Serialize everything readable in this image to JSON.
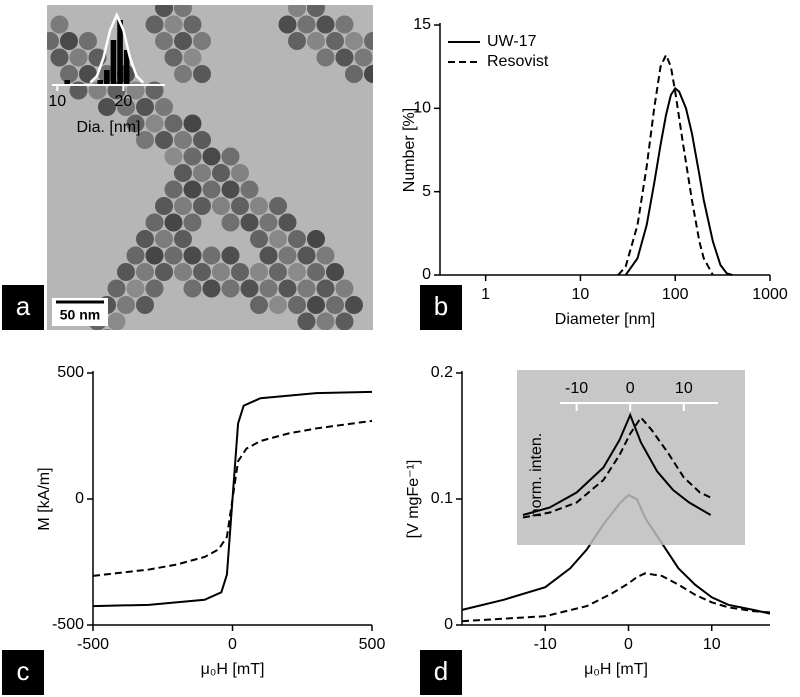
{
  "chart_data": [
    {
      "type": "histogram",
      "panel_label": "a",
      "scale_bar": "50 nm",
      "xlabel": "Dia. [nm]",
      "bins": [
        11,
        12,
        13,
        14,
        15,
        16,
        17,
        18,
        19,
        20,
        21
      ],
      "counts": [
        1,
        0,
        0,
        0,
        0,
        1,
        3,
        9,
        13,
        7,
        1
      ],
      "color": "#000000",
      "fit": {
        "color": "#ffffff",
        "x": [
          15,
          16,
          17,
          18,
          19,
          20,
          21,
          22,
          23
        ],
        "values": [
          0.5,
          1.8,
          5.5,
          11,
          14,
          11,
          5.5,
          1.8,
          0.5
        ]
      },
      "xlim": [
        9.2,
        26.3
      ],
      "xticks": [
        10,
        20
      ],
      "ylim": [
        0,
        14
      ]
    },
    {
      "type": "line",
      "panel_label": "b",
      "xlabel": "Diameter [nm]",
      "ylabel": "Number [%]",
      "xscale": "log",
      "xlim": [
        0.33,
        1000
      ],
      "xticks": [
        1,
        10,
        100,
        1000
      ],
      "ylim": [
        0,
        15
      ],
      "yticks": [
        0,
        5,
        10,
        15
      ],
      "legend": "upper left",
      "series": [
        {
          "name": "UW-17",
          "color": "#000000",
          "linestyle": "solid",
          "x": [
            30,
            40,
            50,
            60,
            70,
            80,
            90,
            100,
            110,
            130,
            150,
            180,
            200,
            250,
            300,
            350,
            400
          ],
          "values": [
            0,
            1,
            3,
            5.5,
            7.8,
            9.6,
            10.8,
            11.2,
            11,
            10,
            8.5,
            6,
            4.5,
            2,
            0.6,
            0.1,
            0
          ]
        },
        {
          "name": "Resovist",
          "color": "#000000",
          "linestyle": "dashed",
          "x": [
            25,
            30,
            40,
            50,
            60,
            70,
            80,
            90,
            100,
            120,
            150,
            180,
            200,
            250
          ],
          "values": [
            0,
            0.5,
            3,
            6.5,
            10,
            12.5,
            13.2,
            12.5,
            11,
            8,
            4.5,
            2,
            1,
            0
          ]
        }
      ]
    },
    {
      "type": "line",
      "panel_label": "c",
      "xlabel": "μ₀H [mT]",
      "ylabel": "M [kA/m]",
      "xlim": [
        -500,
        500
      ],
      "xticks": [
        -500,
        0,
        500
      ],
      "ylim": [
        -500,
        500
      ],
      "yticks": [
        -500,
        0,
        500
      ],
      "series": [
        {
          "color": "#000000",
          "linestyle": "solid",
          "x": [
            -500,
            -300,
            -100,
            -40,
            -20,
            -10,
            0,
            10,
            20,
            40,
            100,
            300,
            500
          ],
          "values": [
            -425,
            -420,
            -400,
            -370,
            -300,
            -150,
            0,
            150,
            300,
            370,
            400,
            420,
            425
          ]
        },
        {
          "color": "#000000",
          "linestyle": "dashed",
          "x": [
            -500,
            -300,
            -200,
            -100,
            -50,
            -20,
            0,
            20,
            50,
            100,
            200,
            300,
            500
          ],
          "values": [
            -305,
            -280,
            -260,
            -230,
            -200,
            -150,
            0,
            150,
            200,
            230,
            260,
            280,
            310
          ]
        }
      ]
    },
    {
      "type": "line",
      "panel_label": "d",
      "xlabel": "μ₀H [mT]",
      "ylabel": "[V mgFe⁻¹]",
      "xlim": [
        -20,
        17
      ],
      "xticks": [
        -10,
        0,
        10
      ],
      "ylim": [
        0,
        0.2
      ],
      "yticks": [
        0,
        0.1,
        0.2
      ],
      "series": [
        {
          "color": "#000000",
          "linestyle": "solid",
          "x": [
            -20,
            -15,
            -10,
            -7,
            -5,
            -3,
            -1,
            0,
            1,
            2,
            4,
            6,
            8,
            10,
            12,
            15,
            17
          ],
          "values": [
            0.012,
            0.02,
            0.03,
            0.045,
            0.06,
            0.08,
            0.097,
            0.103,
            0.1,
            0.085,
            0.065,
            0.045,
            0.032,
            0.022,
            0.016,
            0.012,
            0.009
          ]
        },
        {
          "color": "#000000",
          "linestyle": "dashed",
          "x": [
            -20,
            -10,
            -5,
            -2,
            0,
            1,
            2,
            4,
            6,
            8,
            10,
            12,
            15,
            17
          ],
          "values": [
            0.003,
            0.007,
            0.015,
            0.025,
            0.033,
            0.038,
            0.041,
            0.039,
            0.032,
            0.024,
            0.018,
            0.014,
            0.011,
            0.01
          ]
        }
      ]
    },
    {
      "type": "line",
      "ylabel": "norm. inten.",
      "xlim": [
        -20,
        16
      ],
      "xticks": [
        -10,
        0,
        10
      ],
      "ylim": [
        0,
        1
      ],
      "series": [
        {
          "color": "#000000",
          "linestyle": "solid",
          "x": [
            -20,
            -15,
            -10,
            -5,
            -2,
            0,
            2,
            5,
            8,
            11,
            15
          ],
          "values": [
            0.2,
            0.26,
            0.38,
            0.58,
            0.8,
            1,
            0.78,
            0.55,
            0.4,
            0.3,
            0.2
          ]
        },
        {
          "color": "#000000",
          "linestyle": "dashed",
          "x": [
            -20,
            -15,
            -10,
            -5,
            -2,
            0,
            2,
            4,
            7,
            10,
            13,
            15
          ],
          "values": [
            0.18,
            0.22,
            0.3,
            0.48,
            0.68,
            0.85,
            0.98,
            0.88,
            0.7,
            0.5,
            0.38,
            0.34
          ]
        }
      ]
    }
  ]
}
